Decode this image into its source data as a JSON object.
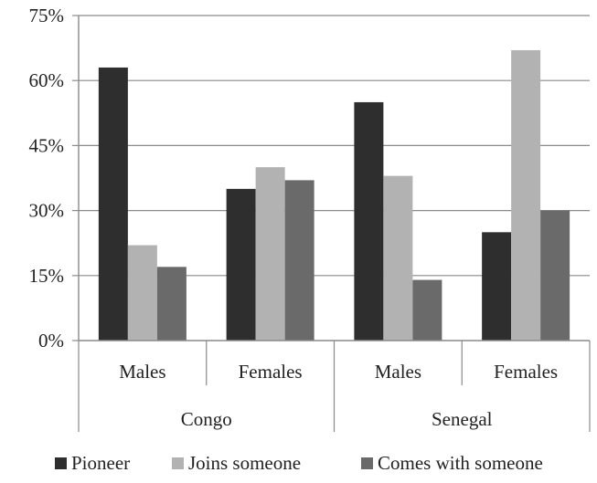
{
  "chart_data": {
    "type": "bar",
    "groups": [
      {
        "name": "Congo",
        "categories": [
          "Males",
          "Females"
        ]
      },
      {
        "name": "Senegal",
        "categories": [
          "Males",
          "Females"
        ]
      }
    ],
    "series": [
      {
        "name": "Pioneer",
        "color": "#2e2e2e",
        "values": [
          63,
          35,
          55,
          25
        ]
      },
      {
        "name": "Joins someone",
        "color": "#b2b2b2",
        "values": [
          22,
          40,
          38,
          67
        ]
      },
      {
        "name": "Comes with someone",
        "color": "#6a6a6a",
        "values": [
          17,
          37,
          14,
          30
        ]
      }
    ],
    "y_ticks": [
      "0%",
      "15%",
      "30%",
      "45%",
      "60%",
      "75%"
    ],
    "y_tick_values": [
      0,
      15,
      30,
      45,
      60,
      75
    ],
    "ylim": [
      0,
      75
    ],
    "grid": true,
    "legend_position": "bottom"
  }
}
